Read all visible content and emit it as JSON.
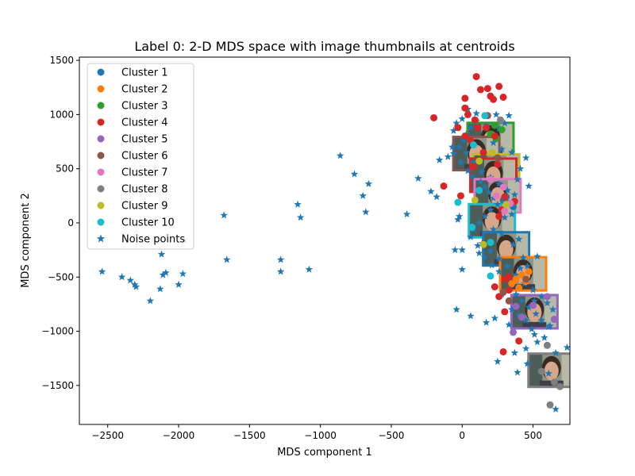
{
  "chart_data": {
    "type": "scatter",
    "title": "Label 0: 2-D MDS space with image thumbnails at centroids",
    "xlabel": "MDS component 1",
    "ylabel": "MDS component 2",
    "xlim": [
      -2700,
      760
    ],
    "ylim": [
      -1860,
      1530
    ],
    "xticks": [
      -2500,
      -2000,
      -1500,
      -1000,
      -500,
      0,
      500
    ],
    "yticks": [
      -1500,
      -1000,
      -500,
      0,
      500,
      1000,
      1500
    ],
    "xtick_labels": [
      "−2500",
      "−2000",
      "−1500",
      "−1000",
      "−500",
      "0",
      "500"
    ],
    "ytick_labels": [
      "−1500",
      "−1000",
      "−500",
      "0",
      "500",
      "1000",
      "1500"
    ],
    "legend_position": "upper-left",
    "grid": false,
    "series": [
      {
        "name": "Cluster 1",
        "color": "#1f77b4",
        "marker": "circle",
        "points": [
          [
            310,
            240
          ],
          [
            330,
            180
          ],
          [
            290,
            210
          ],
          [
            360,
            150
          ]
        ]
      },
      {
        "name": "Cluster 2",
        "color": "#ff7f0e",
        "marker": "circle",
        "points": [
          [
            420,
            -480
          ],
          [
            380,
            -520
          ],
          [
            450,
            -540
          ],
          [
            400,
            -600
          ],
          [
            350,
            -560
          ],
          [
            470,
            -450
          ]
        ]
      },
      {
        "name": "Cluster 3",
        "color": "#2ca02c",
        "marker": "circle",
        "points": [
          [
            200,
            820
          ],
          [
            240,
            780
          ],
          [
            280,
            860
          ],
          [
            230,
            900
          ]
        ]
      },
      {
        "name": "Cluster 4",
        "color": "#d62728",
        "marker": "circle",
        "points": [
          [
            100,
            1350
          ],
          [
            260,
            1260
          ],
          [
            180,
            1240
          ],
          [
            200,
            1170
          ],
          [
            220,
            1140
          ],
          [
            290,
            1160
          ],
          [
            130,
            1230
          ],
          [
            20,
            1150
          ],
          [
            -200,
            970
          ],
          [
            20,
            1060
          ],
          [
            40,
            1000
          ],
          [
            90,
            950
          ],
          [
            -30,
            880
          ],
          [
            20,
            800
          ],
          [
            60,
            760
          ],
          [
            -130,
            340
          ],
          [
            -10,
            250
          ],
          [
            300,
            240
          ],
          [
            280,
            120
          ],
          [
            260,
            60
          ],
          [
            230,
            800
          ],
          [
            170,
            880
          ],
          [
            250,
            540
          ],
          [
            370,
            200
          ],
          [
            300,
            -520
          ],
          [
            260,
            -680
          ],
          [
            330,
            -620
          ],
          [
            400,
            -1090
          ],
          [
            290,
            -1190
          ],
          [
            330,
            -500
          ],
          [
            300,
            -820
          ],
          [
            80,
            520
          ],
          [
            150,
            650
          ],
          [
            230,
            -590
          ],
          [
            110,
            880
          ]
        ]
      },
      {
        "name": "Cluster 5",
        "color": "#9467bd",
        "marker": "circle",
        "points": [
          [
            650,
            -890
          ],
          [
            360,
            -1010
          ],
          [
            420,
            -870
          ],
          [
            500,
            -760
          ],
          [
            380,
            -770
          ],
          [
            600,
            -680
          ]
        ]
      },
      {
        "name": "Cluster 6",
        "color": "#8c564b",
        "marker": "circle",
        "points": [
          [
            180,
            990
          ],
          [
            250,
            600
          ],
          [
            450,
            -520
          ],
          [
            290,
            -640
          ],
          [
            330,
            -720
          ]
        ]
      },
      {
        "name": "Cluster 7",
        "color": "#e377c2",
        "marker": "circle",
        "points": [
          [
            200,
            400
          ],
          [
            290,
            330
          ],
          [
            340,
            180
          ],
          [
            300,
            110
          ],
          [
            240,
            250
          ]
        ]
      },
      {
        "name": "Cluster 8",
        "color": "#7f7f7f",
        "marker": "circle",
        "points": [
          [
            270,
            950
          ],
          [
            600,
            -1130
          ],
          [
            620,
            -1680
          ],
          [
            690,
            -1510
          ],
          [
            650,
            -1470
          ],
          [
            560,
            -1370
          ]
        ]
      },
      {
        "name": "Cluster 9",
        "color": "#bcbd22",
        "marker": "circle",
        "points": [
          [
            210,
            650
          ],
          [
            120,
            570
          ],
          [
            90,
            210
          ],
          [
            310,
            170
          ],
          [
            150,
            -200
          ]
        ]
      },
      {
        "name": "Cluster 10",
        "color": "#17becf",
        "marker": "circle",
        "points": [
          [
            160,
            990
          ],
          [
            80,
            720
          ],
          [
            120,
            300
          ],
          [
            -30,
            190
          ],
          [
            70,
            -40
          ],
          [
            200,
            -180
          ],
          [
            200,
            -490
          ]
        ]
      },
      {
        "name": "Noise points",
        "color": "#1f77b4",
        "marker": "star",
        "points": [
          [
            -2540,
            -450
          ],
          [
            -2400,
            -500
          ],
          [
            -2340,
            -530
          ],
          [
            -2310,
            -570
          ],
          [
            -2300,
            -590
          ],
          [
            -2200,
            -720
          ],
          [
            -2130,
            -610
          ],
          [
            -2110,
            -480
          ],
          [
            -2090,
            -460
          ],
          [
            -2120,
            -290
          ],
          [
            -2000,
            -570
          ],
          [
            -1970,
            -470
          ],
          [
            -1960,
            -160
          ],
          [
            -1680,
            70
          ],
          [
            -1660,
            -340
          ],
          [
            -1280,
            -340
          ],
          [
            -1280,
            -450
          ],
          [
            -1160,
            170
          ],
          [
            -1140,
            50
          ],
          [
            -1080,
            -430
          ],
          [
            -860,
            620
          ],
          [
            -760,
            450
          ],
          [
            -700,
            250
          ],
          [
            -660,
            360
          ],
          [
            -680,
            100
          ],
          [
            -390,
            80
          ],
          [
            -310,
            410
          ],
          [
            -220,
            290
          ],
          [
            -180,
            240
          ],
          [
            -160,
            580
          ],
          [
            -100,
            610
          ],
          [
            -70,
            700
          ],
          [
            -60,
            850
          ],
          [
            -40,
            920
          ],
          [
            0,
            960
          ],
          [
            -30,
            30
          ],
          [
            -20,
            60
          ],
          [
            -50,
            -250
          ],
          [
            0,
            -250
          ],
          [
            0,
            -430
          ],
          [
            -40,
            -800
          ],
          [
            60,
            -860
          ],
          [
            120,
            -280
          ],
          [
            170,
            -920
          ],
          [
            230,
            -880
          ],
          [
            280,
            -660
          ],
          [
            250,
            -1280
          ],
          [
            330,
            -940
          ],
          [
            370,
            -1200
          ],
          [
            390,
            -1380
          ],
          [
            450,
            -1160
          ],
          [
            460,
            -1300
          ],
          [
            490,
            -980
          ],
          [
            510,
            -1030
          ],
          [
            530,
            -1100
          ],
          [
            530,
            -310
          ],
          [
            580,
            -1060
          ],
          [
            610,
            -960
          ],
          [
            660,
            -1200
          ],
          [
            740,
            -1150
          ],
          [
            610,
            -1390
          ],
          [
            660,
            -1720
          ],
          [
            360,
            -200
          ],
          [
            400,
            -150
          ],
          [
            430,
            -320
          ],
          [
            450,
            600
          ],
          [
            470,
            340
          ],
          [
            410,
            500
          ],
          [
            390,
            400
          ],
          [
            350,
            650
          ],
          [
            300,
            920
          ],
          [
            260,
            870
          ],
          [
            280,
            680
          ],
          [
            220,
            740
          ],
          [
            170,
            900
          ],
          [
            100,
            940
          ],
          [
            60,
            880
          ],
          [
            30,
            820
          ],
          [
            10,
            760
          ],
          [
            -20,
            700
          ],
          [
            -60,
            640
          ],
          [
            -10,
            560
          ],
          [
            40,
            480
          ],
          [
            70,
            430
          ],
          [
            130,
            380
          ],
          [
            160,
            330
          ],
          [
            190,
            280
          ],
          [
            220,
            230
          ],
          [
            250,
            170
          ],
          [
            200,
            120
          ],
          [
            160,
            60
          ],
          [
            120,
            0
          ],
          [
            80,
            -60
          ],
          [
            60,
            -130
          ],
          [
            110,
            -210
          ],
          [
            160,
            -320
          ],
          [
            210,
            -390
          ],
          [
            260,
            -450
          ],
          [
            300,
            -520
          ],
          [
            340,
            -600
          ],
          [
            380,
            -660
          ],
          [
            420,
            -720
          ],
          [
            470,
            -780
          ],
          [
            520,
            -840
          ],
          [
            560,
            -900
          ],
          [
            620,
            -950
          ],
          [
            500,
            -620
          ],
          [
            440,
            -560
          ],
          [
            380,
            -480
          ],
          [
            320,
            -400
          ],
          [
            260,
            -330
          ],
          [
            200,
            -260
          ],
          [
            140,
            -190
          ],
          [
            100,
            1010
          ],
          [
            40,
            1050
          ],
          [
            240,
            1000
          ],
          [
            330,
            990
          ],
          [
            30,
            650
          ],
          [
            80,
            560
          ],
          [
            140,
            470
          ],
          [
            200,
            420
          ],
          [
            260,
            360
          ],
          [
            320,
            300
          ],
          [
            370,
            260
          ],
          [
            300,
            50
          ],
          [
            350,
            80
          ],
          [
            280,
            -100
          ],
          [
            220,
            -60
          ],
          [
            410,
            -420
          ],
          [
            460,
            -400
          ],
          [
            350,
            -800
          ],
          [
            400,
            -850
          ],
          [
            450,
            -900
          ],
          [
            510,
            -720
          ],
          [
            560,
            -680
          ],
          [
            600,
            -740
          ],
          [
            640,
            -800
          ]
        ]
      }
    ],
    "thumbnails": [
      {
        "cluster": "Cluster 3",
        "border_color": "#2ca02c",
        "center": [
          200,
          770
        ]
      },
      {
        "cluster": "Cluster 6",
        "border_color": "#8c564b",
        "center": [
          100,
          640
        ]
      },
      {
        "cluster": "Cluster 9",
        "border_color": "#bcbd22",
        "center": [
          240,
          480
        ]
      },
      {
        "cluster": "Cluster 4",
        "border_color": "#d62728",
        "center": [
          220,
          440
        ]
      },
      {
        "cluster": "Cluster 7",
        "border_color": "#e377c2",
        "center": [
          250,
          250
        ]
      },
      {
        "cluster": "Cluster 10",
        "border_color": "#17becf",
        "center": [
          210,
          20
        ]
      },
      {
        "cluster": "Cluster 1",
        "border_color": "#1f77b4",
        "center": [
          310,
          -240
        ]
      },
      {
        "cluster": "Cluster 2",
        "border_color": "#ff7f0e",
        "center": [
          430,
          -470
        ]
      },
      {
        "cluster": "Cluster 5",
        "border_color": "#9467bd",
        "center": [
          510,
          -820
        ]
      },
      {
        "cluster": "Cluster 8",
        "border_color": "#7f7f7f",
        "center": [
          630,
          -1360
        ]
      }
    ]
  }
}
